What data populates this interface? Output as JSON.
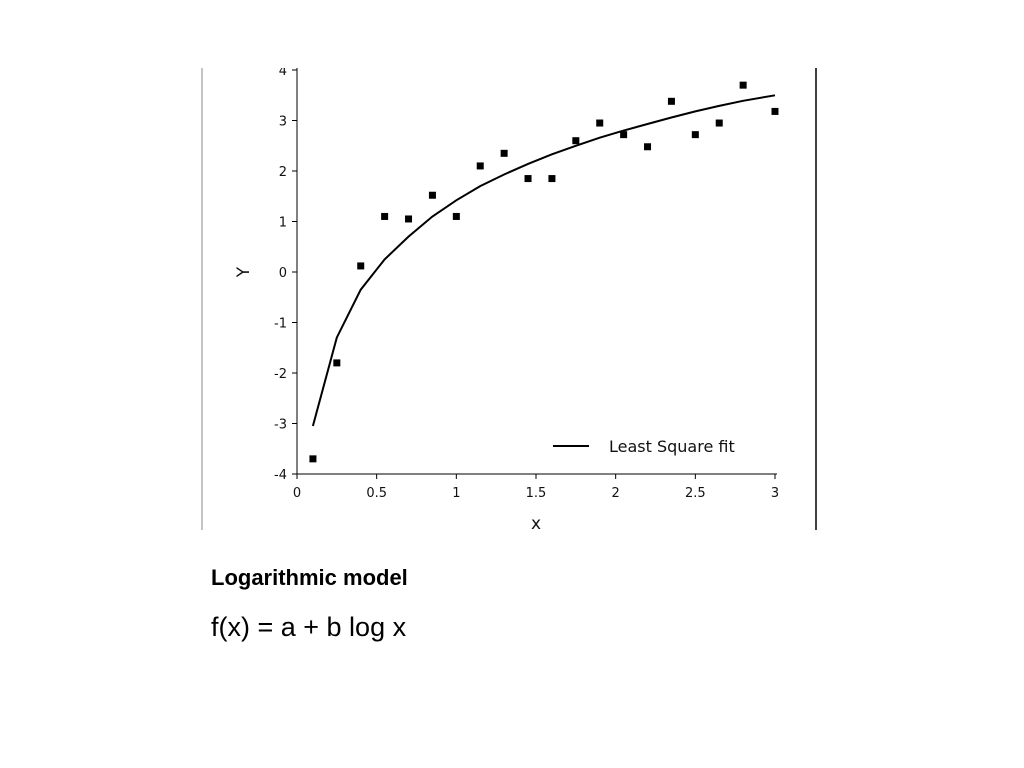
{
  "caption": {
    "title": "Logarithmic model",
    "formula": "f(x) = a + b log x"
  },
  "chart_data": {
    "type": "scatter",
    "xlabel": "x",
    "ylabel": "Y",
    "xlim": [
      0,
      3
    ],
    "ylim": [
      -4,
      4
    ],
    "grid": false,
    "legend_position": "bottom-right",
    "x_tick_labels": [
      "0",
      "0.5",
      "1",
      "1.5",
      "2",
      "2.5",
      "3"
    ],
    "y_tick_labels": [
      "-4",
      "-3",
      "-2",
      "-1",
      "0",
      "1",
      "2",
      "3",
      "4"
    ],
    "points": [
      {
        "x": 0.1,
        "y": -3.7
      },
      {
        "x": 0.25,
        "y": -1.8
      },
      {
        "x": 0.4,
        "y": 0.12
      },
      {
        "x": 0.55,
        "y": 1.1
      },
      {
        "x": 0.7,
        "y": 1.05
      },
      {
        "x": 0.85,
        "y": 1.52
      },
      {
        "x": 1.0,
        "y": 1.1
      },
      {
        "x": 1.15,
        "y": 2.1
      },
      {
        "x": 1.3,
        "y": 2.35
      },
      {
        "x": 1.45,
        "y": 1.85
      },
      {
        "x": 1.6,
        "y": 1.85
      },
      {
        "x": 1.75,
        "y": 2.6
      },
      {
        "x": 1.9,
        "y": 2.95
      },
      {
        "x": 2.05,
        "y": 2.72
      },
      {
        "x": 2.2,
        "y": 2.48
      },
      {
        "x": 2.35,
        "y": 3.38
      },
      {
        "x": 2.5,
        "y": 2.72
      },
      {
        "x": 2.65,
        "y": 2.95
      },
      {
        "x": 2.8,
        "y": 3.7
      },
      {
        "x": 3.0,
        "y": 3.18
      }
    ],
    "fit": {
      "name": "Least Square fit",
      "x": [
        0.1,
        0.25,
        0.4,
        0.55,
        0.7,
        0.85,
        1.0,
        1.15,
        1.3,
        1.45,
        1.6,
        1.75,
        1.9,
        2.05,
        2.2,
        2.35,
        2.5,
        2.65,
        2.8,
        3.0
      ],
      "y": [
        -3.05,
        -1.3,
        -0.35,
        0.25,
        0.7,
        1.1,
        1.42,
        1.7,
        1.93,
        2.14,
        2.33,
        2.5,
        2.66,
        2.8,
        2.93,
        3.06,
        3.18,
        3.29,
        3.39,
        3.5
      ]
    }
  }
}
